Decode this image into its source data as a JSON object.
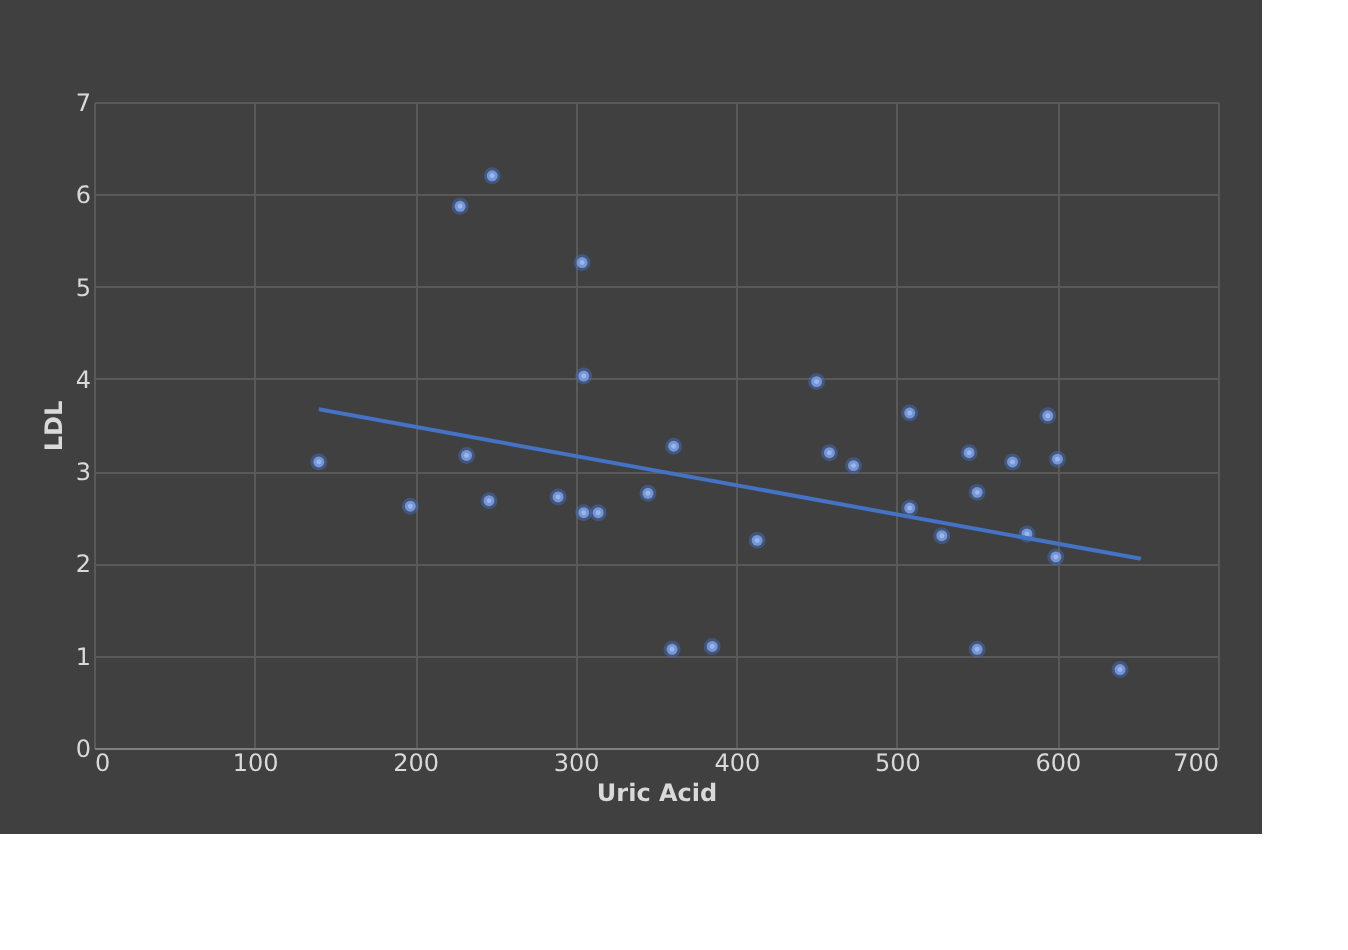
{
  "chart_data": {
    "type": "scatter",
    "xlabel": "Uric Acid",
    "ylabel": "LDL",
    "xlim": [
      0,
      700
    ],
    "xticks": [
      0,
      100,
      200,
      300,
      400,
      500,
      600,
      700
    ],
    "ylim": [
      0,
      7
    ],
    "yticks": [
      0,
      1,
      2,
      3,
      4,
      5,
      6,
      7
    ],
    "grid": true,
    "series": [
      {
        "marker": "circle",
        "color": "#9db5e8",
        "x": [
          140,
          197,
          228,
          232,
          246,
          248,
          289,
          304,
          305,
          305,
          314,
          345,
          361,
          360,
          385,
          413,
          450,
          458,
          473,
          508,
          508,
          528,
          545,
          550,
          550,
          572,
          581,
          594,
          599,
          600,
          639
        ],
        "values": [
          3.1,
          2.62,
          5.87,
          3.17,
          2.68,
          6.2,
          2.72,
          5.26,
          4.03,
          2.55,
          2.55,
          2.76,
          3.27,
          1.07,
          1.1,
          2.25,
          3.97,
          3.2,
          3.06,
          3.63,
          2.6,
          2.3,
          3.2,
          2.77,
          1.07,
          3.1,
          2.32,
          3.6,
          2.07,
          3.13,
          0.85
        ]
      },
      {
        "type": "line",
        "marker": "none",
        "color": "#4472c4",
        "line_style": "solid",
        "x": [
          140,
          652
        ],
        "values": [
          3.67,
          2.05
        ]
      }
    ]
  }
}
